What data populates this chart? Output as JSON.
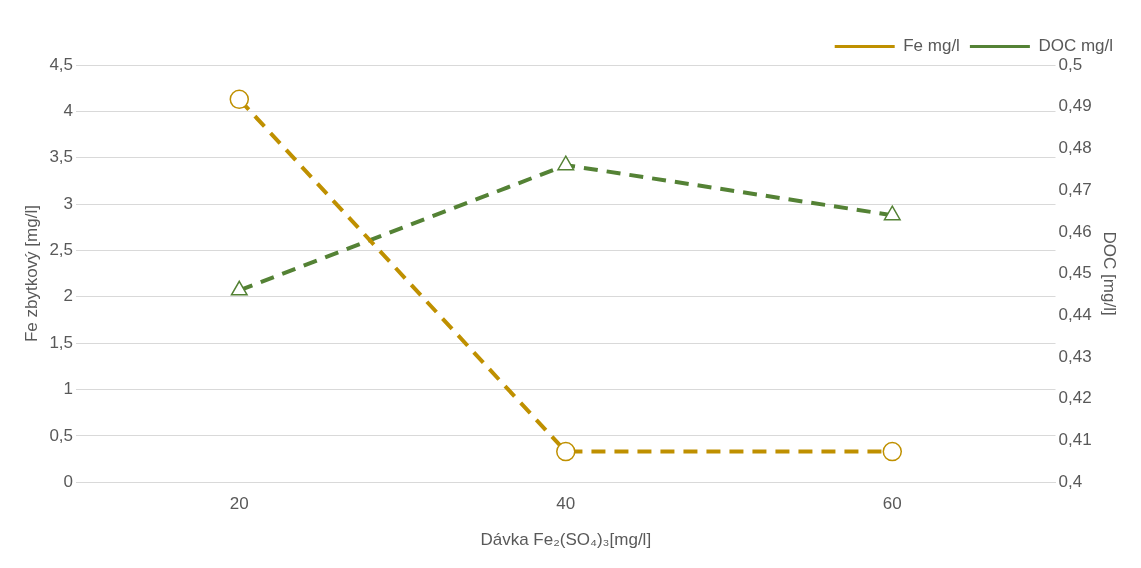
{
  "chart_data": {
    "type": "line",
    "xlabel": "Dávka Fe₂(SO₄)₃[mg/l]",
    "ylabel": "Fe zbytkový [mg/l]",
    "y2label": "DOC [mg/l]",
    "categories": [
      "20",
      "40",
      "60"
    ],
    "series": [
      {
        "name": "Fe mg/l",
        "color": "#bf9000",
        "values": [
          4.13,
          0.33,
          0.33
        ],
        "marker": "circle",
        "line_style": "dashed"
      },
      {
        "name": "DOC mg/l",
        "color": "#548235",
        "values": [
          0.446,
          0.476,
          0.464
        ],
        "marker": "triangle",
        "line_style": "dashed",
        "axis": "y2"
      }
    ],
    "ylim": [
      0,
      4.5
    ],
    "yticks": [
      0,
      {
        "value": 0.5,
        "label": "0,5"
      },
      1,
      {
        "value": 1.5,
        "label": "1,5"
      },
      2,
      {
        "value": 2.5,
        "label": "2,5"
      },
      3,
      {
        "value": 3.5,
        "label": "3,5"
      },
      4,
      {
        "value": 4.5,
        "label": "4,5"
      }
    ],
    "y2lim": [
      0.4,
      0.5
    ],
    "y2ticks": [
      {
        "value": 0.4,
        "label": "0,4"
      },
      {
        "value": 0.41,
        "label": "0,41"
      },
      {
        "value": 0.42,
        "label": "0,42"
      },
      {
        "value": 0.43,
        "label": "0,43"
      },
      {
        "value": 0.44,
        "label": "0,44"
      },
      {
        "value": 0.45,
        "label": "0,45"
      },
      {
        "value": 0.46,
        "label": "0,46"
      },
      {
        "value": 0.47,
        "label": "0,47"
      },
      {
        "value": 0.48,
        "label": "0,48"
      },
      {
        "value": 0.49,
        "label": "0,49"
      },
      {
        "value": 0.5,
        "label": "0,5"
      }
    ],
    "grid": "y",
    "legend": "top right"
  }
}
